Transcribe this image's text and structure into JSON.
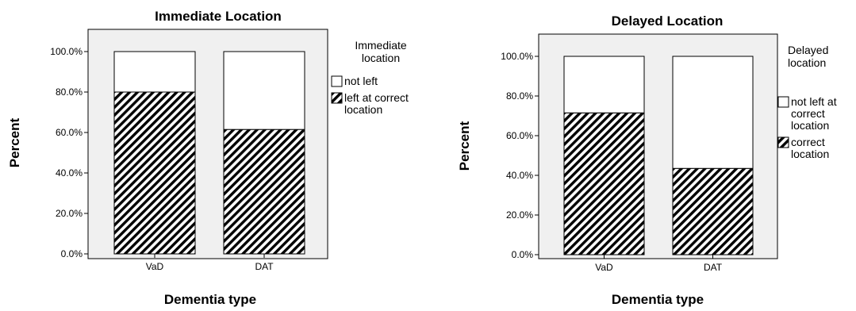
{
  "chart_data": [
    {
      "type": "bar",
      "stacked": true,
      "title": "Immediate Location",
      "xlabel": "Dementia type",
      "ylabel": "Percent",
      "categories": [
        "VaD",
        "DAT"
      ],
      "ylim": [
        0,
        100
      ],
      "yticks": [
        "0.0%",
        "20.0%",
        "40.0%",
        "60.0%",
        "80.0%",
        "100.0%"
      ],
      "legend_title": [
        "Immediate",
        "location"
      ],
      "legend_position": "right",
      "series": [
        {
          "name": "left at correct location",
          "legend_lines": [
            "left at correct",
            "location"
          ],
          "pattern": "hatched",
          "values": [
            80,
            61.5
          ]
        },
        {
          "name": "not left",
          "legend_lines": [
            "not left"
          ],
          "pattern": "white",
          "values": [
            20,
            38.5
          ]
        }
      ],
      "colors": {
        "plot_background": "#f0f0f0",
        "bar_fill": "#ffffff",
        "hatch": "#000000"
      }
    },
    {
      "type": "bar",
      "stacked": true,
      "title": "Delayed Location",
      "xlabel": "Dementia type",
      "ylabel": "Percent",
      "categories": [
        "VaD",
        "DAT"
      ],
      "ylim": [
        0,
        100
      ],
      "yticks": [
        "0.0%",
        "20.0%",
        "40.0%",
        "60.0%",
        "80.0%",
        "100.0%"
      ],
      "legend_title": [
        "Delayed",
        "location"
      ],
      "legend_position": "right",
      "series": [
        {
          "name": "correct location",
          "legend_lines": [
            "correct",
            "location"
          ],
          "pattern": "hatched",
          "values": [
            71.5,
            43.5
          ]
        },
        {
          "name": "not left at correct location",
          "legend_lines": [
            "not left at",
            "correct",
            "location"
          ],
          "pattern": "white",
          "values": [
            28.5,
            56.5
          ]
        }
      ],
      "colors": {
        "plot_background": "#f0f0f0",
        "bar_fill": "#ffffff",
        "hatch": "#000000"
      }
    }
  ]
}
